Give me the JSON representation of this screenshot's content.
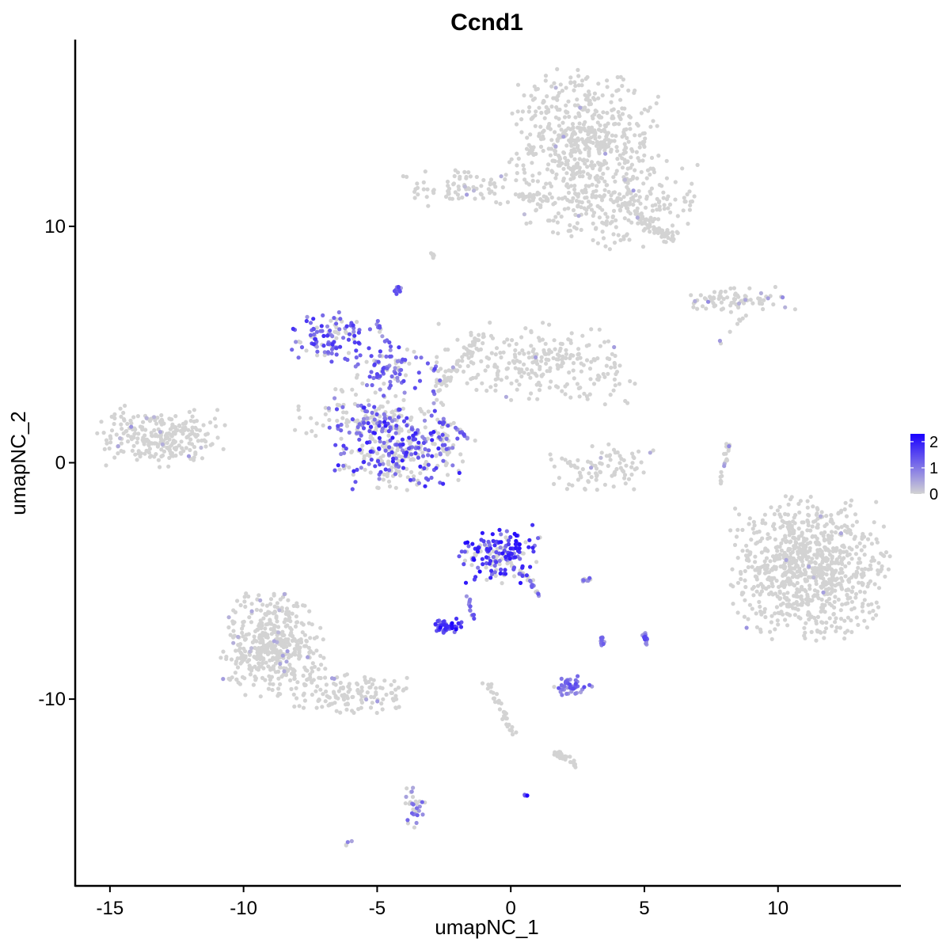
{
  "chart_data": {
    "type": "scatter",
    "title": "Ccnd1",
    "xlabel": "umapNC_1",
    "ylabel": "umapNC_2",
    "xlim": [
      -16.3,
      14.6
    ],
    "ylim": [
      -17.9,
      17.9
    ],
    "x_ticks": [
      -15,
      -10,
      -5,
      0,
      5,
      10
    ],
    "x_tick_labels": [
      "-15",
      "-10",
      "-5",
      "0",
      "5",
      "10"
    ],
    "y_ticks": [
      -10,
      0,
      10
    ],
    "y_tick_labels": [
      "-10",
      "0",
      "10"
    ],
    "grid": false,
    "legend": {
      "placement": "right",
      "type": "colorbar",
      "min": 0,
      "max": 2.3,
      "ticks": [
        0,
        1,
        2
      ],
      "tick_labels": [
        "0",
        "1",
        "2"
      ],
      "low_color": "#d3d3d3",
      "high_color": "#1a00ff"
    },
    "clusters": [
      {
        "name": "c1",
        "cx": 2.8,
        "cy": 13.8,
        "sx": 1.3,
        "sy": 1.3,
        "n": 520,
        "expr_frac": 0.01,
        "expr_max": 0.7
      },
      {
        "name": "c2",
        "cx": 4.0,
        "cy": 11.0,
        "sx": 1.6,
        "sy": 0.9,
        "n": 260,
        "expr_frac": 0.02,
        "expr_max": 0.7
      },
      {
        "name": "c3",
        "cx": -2.0,
        "cy": 11.6,
        "sx": 1.0,
        "sy": 0.4,
        "n": 80,
        "expr_frac": 0.02,
        "expr_max": 0.6
      },
      {
        "name": "c4",
        "cx": 8.5,
        "cy": 6.9,
        "sx": 1.0,
        "sy": 0.25,
        "n": 80,
        "expr_frac": 0.08,
        "expr_max": 0.8
      },
      {
        "name": "c5",
        "cx": -13.1,
        "cy": 1.1,
        "sx": 1.1,
        "sy": 0.6,
        "n": 260,
        "expr_frac": 0.02,
        "expr_max": 0.7
      },
      {
        "name": "c6",
        "cx": -6.7,
        "cy": 5.3,
        "sx": 0.7,
        "sy": 0.5,
        "n": 110,
        "expr_frac": 0.8,
        "expr_max": 1.8
      },
      {
        "name": "c7",
        "cx": -4.6,
        "cy": 4.0,
        "sx": 0.6,
        "sy": 0.5,
        "n": 80,
        "expr_frac": 0.75,
        "expr_max": 1.7
      },
      {
        "name": "c8",
        "cx": -4.2,
        "cy": 0.6,
        "sx": 1.1,
        "sy": 0.8,
        "n": 320,
        "expr_frac": 0.55,
        "expr_max": 2.0
      },
      {
        "name": "c9",
        "cx": 1.0,
        "cy": 4.2,
        "sx": 1.7,
        "sy": 0.8,
        "n": 260,
        "expr_frac": 0.02,
        "expr_max": 0.6
      },
      {
        "name": "c10",
        "cx": 3.4,
        "cy": -0.2,
        "sx": 0.9,
        "sy": 0.5,
        "n": 90,
        "expr_frac": 0.05,
        "expr_max": 0.6
      },
      {
        "name": "c11",
        "cx": 11.2,
        "cy": -4.5,
        "sx": 1.4,
        "sy": 1.4,
        "n": 850,
        "expr_frac": 0.01,
        "expr_max": 0.7
      },
      {
        "name": "c12",
        "cx": -8.9,
        "cy": -7.7,
        "sx": 0.9,
        "sy": 1.0,
        "n": 440,
        "expr_frac": 0.03,
        "expr_max": 0.7
      },
      {
        "name": "c13",
        "cx": -6.0,
        "cy": -9.8,
        "sx": 1.2,
        "sy": 0.4,
        "n": 140,
        "expr_frac": 0.04,
        "expr_max": 0.7
      },
      {
        "name": "c14",
        "cx": -0.4,
        "cy": -3.9,
        "sx": 0.7,
        "sy": 0.6,
        "n": 170,
        "expr_frac": 0.75,
        "expr_max": 2.2
      },
      {
        "name": "c15",
        "cx": -2.5,
        "cy": -6.9,
        "sx": 0.3,
        "sy": 0.15,
        "n": 45,
        "expr_frac": 1.0,
        "expr_max": 2.3
      },
      {
        "name": "c16",
        "cx": 2.3,
        "cy": -9.5,
        "sx": 0.35,
        "sy": 0.25,
        "n": 45,
        "expr_frac": 0.9,
        "expr_max": 1.5
      },
      {
        "name": "c17",
        "cx": -3.6,
        "cy": -14.7,
        "sx": 0.2,
        "sy": 0.5,
        "n": 30,
        "expr_frac": 0.6,
        "expr_max": 1.3
      },
      {
        "name": "c18",
        "cx": -5.6,
        "cy": 2.0,
        "sx": 1.2,
        "sy": 0.6,
        "n": 90,
        "expr_frac": 0.3,
        "expr_max": 1.6
      }
    ],
    "trails": [
      {
        "name": "t1",
        "x0": -2.9,
        "y0": 4.5,
        "x1": -2.3,
        "y1": -0.5,
        "spread": 0.25,
        "n": 40,
        "expr_frac": 0.4,
        "expr_max": 1.6
      },
      {
        "name": "t2",
        "x0": -2.8,
        "y0": 3.0,
        "x1": -0.9,
        "y1": 5.5,
        "spread": 0.22,
        "n": 50,
        "expr_frac": 0.05,
        "expr_max": 0.6
      },
      {
        "name": "t3",
        "x0": -2.6,
        "y0": 1.8,
        "x1": -1.3,
        "y1": 0.8,
        "spread": 0.1,
        "n": 20,
        "expr_frac": 0.7,
        "expr_max": 1.5
      },
      {
        "name": "t4",
        "x0": -5.0,
        "y0": 6.0,
        "x1": -4.4,
        "y1": 4.4,
        "spread": 0.15,
        "n": 15,
        "expr_frac": 0.6,
        "expr_max": 1.5
      },
      {
        "name": "t5",
        "x0": -4.2,
        "y0": 7.5,
        "x1": -4.3,
        "y1": 7.2,
        "spread": 0.1,
        "n": 14,
        "expr_frac": 0.9,
        "expr_max": 1.6
      },
      {
        "name": "t6",
        "x0": 0.2,
        "y0": 11.3,
        "x1": 1.6,
        "y1": 11.1,
        "spread": 0.15,
        "n": 25,
        "expr_frac": 0.0,
        "expr_max": 0.0
      },
      {
        "name": "t7",
        "x0": 4.8,
        "y0": 10.4,
        "x1": 6.0,
        "y1": 9.5,
        "spread": 0.25,
        "n": 60,
        "expr_frac": 0.02,
        "expr_max": 0.6
      },
      {
        "name": "t8",
        "x0": 8.2,
        "y0": 0.9,
        "x1": 7.8,
        "y1": -0.9,
        "spread": 0.1,
        "n": 22,
        "expr_frac": 0.1,
        "expr_max": 0.9
      },
      {
        "name": "t9",
        "x0": 1.1,
        "y0": -5.6,
        "x1": -0.1,
        "y1": -4.1,
        "spread": 0.15,
        "n": 25,
        "expr_frac": 0.6,
        "expr_max": 1.4
      },
      {
        "name": "t10",
        "x0": -1.6,
        "y0": -5.7,
        "x1": -1.4,
        "y1": -6.6,
        "spread": 0.1,
        "n": 14,
        "expr_frac": 0.8,
        "expr_max": 1.6
      },
      {
        "name": "t11",
        "x0": -0.9,
        "y0": -9.3,
        "x1": 0.2,
        "y1": -11.6,
        "spread": 0.15,
        "n": 35,
        "expr_frac": 0.0,
        "expr_max": 0.0
      },
      {
        "name": "t12",
        "x0": 1.6,
        "y0": -12.2,
        "x1": 2.5,
        "y1": -12.8,
        "spread": 0.15,
        "n": 30,
        "expr_frac": 0.0,
        "expr_max": 0.0
      },
      {
        "name": "t13",
        "x0": -6.6,
        "y0": 1.5,
        "x1": -4.0,
        "y1": 2.0,
        "spread": 0.25,
        "n": 35,
        "expr_frac": 0.3,
        "expr_max": 1.5
      },
      {
        "name": "t14",
        "x0": 2.6,
        "y0": -5.0,
        "x1": 3.0,
        "y1": -4.9,
        "spread": 0.08,
        "n": 10,
        "expr_frac": 0.9,
        "expr_max": 1.3
      },
      {
        "name": "t15",
        "x0": 3.4,
        "y0": -7.4,
        "x1": 3.4,
        "y1": -7.7,
        "spread": 0.08,
        "n": 10,
        "expr_frac": 0.9,
        "expr_max": 1.3
      },
      {
        "name": "t16",
        "x0": 5.0,
        "y0": -7.1,
        "x1": 5.1,
        "y1": -7.8,
        "spread": 0.08,
        "n": 14,
        "expr_frac": 1.0,
        "expr_max": 1.6
      },
      {
        "name": "t17",
        "x0": 0.5,
        "y0": -14.0,
        "x1": 0.6,
        "y1": -14.1,
        "spread": 0.04,
        "n": 6,
        "expr_frac": 1.0,
        "expr_max": 2.3
      },
      {
        "name": "t18",
        "x0": -6.0,
        "y0": -16.0,
        "x1": -6.2,
        "y1": -16.2,
        "spread": 0.04,
        "n": 4,
        "expr_frac": 0.5,
        "expr_max": 1.0
      },
      {
        "name": "t19",
        "x0": -3.0,
        "y0": 8.9,
        "x1": -2.8,
        "y1": 8.7,
        "spread": 0.05,
        "n": 6,
        "expr_frac": 0.0,
        "expr_max": 0.0
      },
      {
        "name": "t20",
        "x0": 7.8,
        "y0": 5.0,
        "x1": 8.8,
        "y1": 6.3,
        "spread": 0.1,
        "n": 8,
        "expr_frac": 0.2,
        "expr_max": 0.8
      }
    ]
  }
}
